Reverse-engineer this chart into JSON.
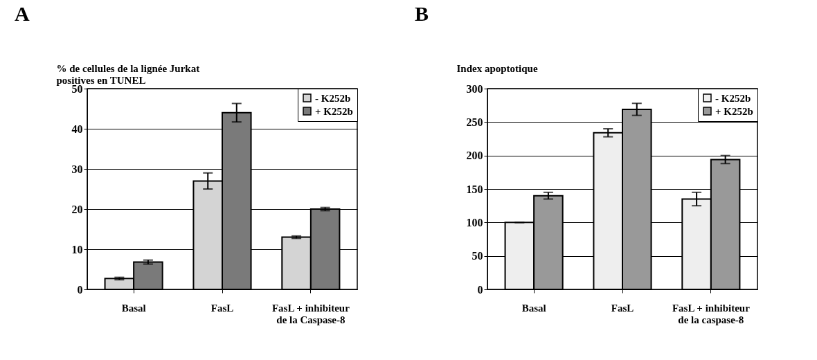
{
  "chart_data": [
    {
      "type": "bar",
      "title": "A",
      "ylabel": "% de cellules de la lignée Jurkat positives en TUNEL",
      "categories": [
        "Basal",
        "FasL",
        "FasL + inhibiteur de la Caspase-8"
      ],
      "series": [
        {
          "name": "- K252b",
          "color": "#d4d4d4",
          "values": [
            2.7,
            27,
            13
          ],
          "errors": [
            0.3,
            2,
            0.3
          ]
        },
        {
          "name": "+ K252b",
          "color": "#7a7a7a",
          "values": [
            6.8,
            44,
            20
          ],
          "errors": [
            0.5,
            2.3,
            0.4
          ]
        }
      ],
      "ylim": [
        0,
        50
      ],
      "yticks": [
        0,
        10,
        20,
        30,
        40,
        50
      ],
      "grid": "y",
      "legend": "top right"
    },
    {
      "type": "bar",
      "title": "B",
      "ylabel": "Index apoptotique",
      "categories": [
        "Basal",
        "FasL",
        "FasL + inhibiteur de la caspase-8"
      ],
      "series": [
        {
          "name": "- K252b",
          "color": "#eeeeee",
          "values": [
            100,
            234,
            135
          ],
          "errors": [
            0,
            6,
            10
          ]
        },
        {
          "name": "+ K252b",
          "color": "#999999",
          "values": [
            140,
            269,
            194
          ],
          "errors": [
            5,
            9,
            6
          ]
        }
      ],
      "ylim": [
        0,
        300
      ],
      "yticks": [
        0,
        50,
        100,
        150,
        200,
        250,
        300
      ],
      "grid": "y",
      "legend": "top right"
    }
  ]
}
